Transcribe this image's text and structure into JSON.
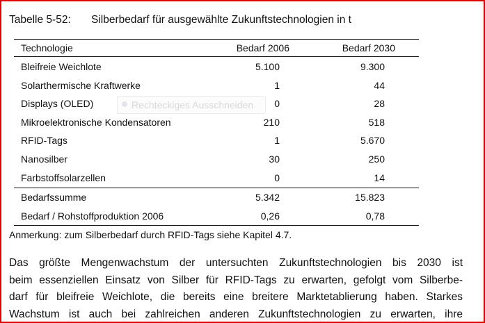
{
  "table": {
    "number": "Tabelle 5-52:",
    "caption": "Silberbedarf für ausgewählte Zukunftstechnologien in t",
    "headers": [
      "Technologie",
      "Bedarf 2006",
      "Bedarf 2030"
    ],
    "rows": [
      [
        "Bleifreie Weichlote",
        "5.100",
        "9.300"
      ],
      [
        "Solarthermische Kraftwerke",
        "1",
        "44"
      ],
      [
        "Displays (OLED)",
        "0",
        "28"
      ],
      [
        "Mikroelektronische Kondensatoren",
        "210",
        "518"
      ],
      [
        "RFID-Tags",
        "1",
        "5.670"
      ],
      [
        "Nanosilber",
        "30",
        "250"
      ],
      [
        "Farbstoffsolarzellen",
        "0",
        "14"
      ]
    ],
    "summary": [
      [
        "Bedarfssumme",
        "5.342",
        "15.823"
      ],
      [
        "Bedarf / Rohstoffproduktion 2006",
        "0,26",
        "0,78"
      ]
    ],
    "note": "Anmerkung: zum Silberbedarf durch RFID-Tags siehe Kapitel 4.7."
  },
  "paragraph": [
    "Das größte Mengenwachstum der untersuchten Zukunftstechnologien bis 2030 ist",
    "beim essenziellen Einsatz von Silber für RFID-Tags zu erwarten, gefolgt vom Silberbe-",
    "darf für bleifreie Weichlote, die bereits eine breitere Marktetablierung haben. Starkes",
    "Wachstum ist auch bei zahlreichen anderen Zukunftstechnologien zu erwarten, ihre"
  ],
  "overlay": {
    "label": "Rechteckiges Ausschneiden",
    "icon": "radio-dot-icon"
  },
  "colors": {
    "frame": "#e00000"
  }
}
